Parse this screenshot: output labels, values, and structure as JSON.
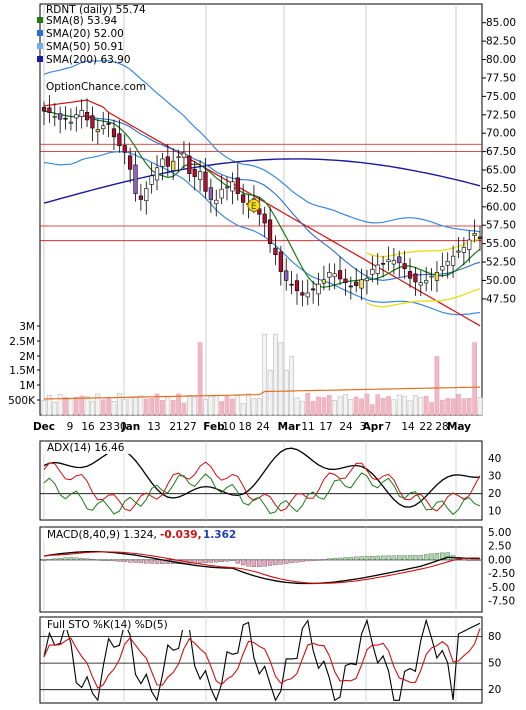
{
  "chart_data": [
    {
      "type": "candlestick",
      "panel": "price",
      "title": "RDNT (daily) 55.74",
      "watermark": "OptionChance.com",
      "ylim": [
        43,
        87
      ],
      "yticks": [
        "85.00",
        "82.50",
        "80.00",
        "77.50",
        "75.00",
        "72.50",
        "70.00",
        "67.50",
        "65.00",
        "62.50",
        "60.00",
        "57.50",
        "55.00",
        "52.50",
        "50.00",
        "47.50"
      ],
      "volume_ticks": [
        "3M",
        "2.5M",
        "2M",
        "1.5M",
        "1M",
        "500K"
      ],
      "x_ticks": [
        "Dec",
        "9",
        "16",
        "23",
        "30",
        "Jan",
        "13",
        "21",
        "27",
        "Feb",
        "10",
        "18",
        "24",
        "Mar",
        "11",
        "17",
        "24",
        "3",
        "Apr",
        "7",
        "14",
        "22",
        "28",
        "May"
      ],
      "legend": [
        {
          "label": "SMA(8) 53.94",
          "color": "#1a7a1a"
        },
        {
          "label": "SMA(20) 52.00",
          "color": "#2a6fd0"
        },
        {
          "label": "SMA(50) 50.91",
          "color": "#6fb0e8"
        },
        {
          "label": "SMA(200) 63.90",
          "color": "#1a1a9e"
        }
      ],
      "horizontal_levels": [
        68.5,
        67.5,
        57.4,
        55.4
      ],
      "close": [
        73.0,
        72.8,
        72.3,
        71.9,
        72.0,
        71.5,
        72.5,
        73.1,
        71.8,
        70.7,
        70.5,
        71.0,
        71.2,
        69.5,
        68.3,
        67.4,
        65.1,
        61.8,
        61.0,
        62.5,
        64.2,
        65.3,
        66.5,
        65.5,
        66.2,
        66.8,
        67.3,
        64.5,
        64.1,
        64.8,
        62.1,
        61.0,
        60.9,
        62.4,
        62.7,
        63.4,
        61.8,
        60.6,
        60.5,
        60.2,
        59.0,
        57.8,
        55.0,
        53.5,
        51.2,
        50.0,
        49.4,
        48.6,
        48.0,
        48.3,
        48.7,
        49.5,
        50.1,
        51.1,
        50.9,
        50.2,
        49.7,
        49.2,
        49.3,
        50.1,
        50.3,
        51.5,
        52.1,
        52.3,
        52.8,
        52.7,
        52.4,
        51.6,
        50.3,
        49.8,
        49.7,
        50.0,
        50.6,
        51.1,
        51.9,
        52.6,
        53.3,
        54.0,
        54.5,
        55.5,
        56.4,
        55.7
      ]
    },
    {
      "type": "line",
      "panel": "adx",
      "title": "ADX(14) 16.46",
      "ylim": [
        5,
        50
      ],
      "yticks": [
        "40",
        "30",
        "20",
        "10"
      ],
      "series_colors": [
        "#000000",
        "#d01010",
        "#1a7a1a"
      ]
    },
    {
      "type": "bar+line",
      "panel": "macd",
      "title": "MACD(8,40,9) 1.324,",
      "values_text": [
        "-0.039,",
        "1.362"
      ],
      "values_colors": [
        "#d01010",
        "#1a3ec0"
      ],
      "ylim": [
        -9.5,
        6
      ],
      "yticks": [
        "5.00",
        "2.50",
        "0.00",
        "-2.50",
        "-5.00",
        "-7.50"
      ]
    },
    {
      "type": "line",
      "panel": "stochastic",
      "title": "Full STO %K(14) %D(5)",
      "ylim": [
        5,
        102
      ],
      "yticks": [
        "80",
        "50",
        "20"
      ]
    }
  ]
}
